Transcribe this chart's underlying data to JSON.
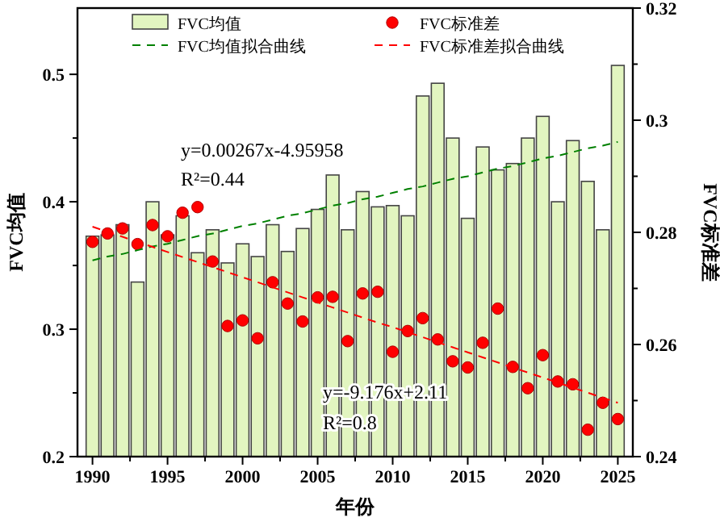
{
  "chart_data": {
    "type": "bar",
    "xlabel": "年份",
    "ylabel": "FVC均值",
    "y2label": "FVC标准差",
    "x": [
      1990,
      1991,
      1992,
      1993,
      1994,
      1995,
      1996,
      1997,
      1998,
      1999,
      2000,
      2001,
      2002,
      2003,
      2004,
      2005,
      2006,
      2007,
      2008,
      2009,
      2010,
      2011,
      2012,
      2013,
      2014,
      2015,
      2016,
      2017,
      2018,
      2019,
      2020,
      2021,
      2022,
      2023,
      2024,
      2025
    ],
    "xlim": [
      1989,
      2026
    ],
    "xticks": [
      1990,
      {
        "value": 1992.5,
        "label": null
      },
      1995,
      {
        "value": 1997.5,
        "label": null
      },
      2000,
      {
        "value": 2002.5,
        "label": null
      },
      2005,
      {
        "value": 2007.5,
        "label": null
      },
      2010,
      {
        "value": 2012.5,
        "label": null
      },
      2015,
      {
        "value": 2017.5,
        "label": null
      },
      2020,
      {
        "value": 2022.5,
        "label": null
      },
      2025
    ],
    "ylim": [
      0.2,
      0.552
    ],
    "yticks": [
      0.2,
      {
        "value": 0.25,
        "label": null
      },
      0.3,
      {
        "value": 0.35,
        "label": null
      },
      0.4,
      {
        "value": 0.45,
        "label": null
      },
      0.5
    ],
    "y2lim": [
      0.24,
      0.32
    ],
    "y2ticks": [
      0.24,
      {
        "value": 0.25,
        "label": null
      },
      0.26,
      {
        "value": 0.27,
        "label": null
      },
      0.28,
      {
        "value": 0.29,
        "label": null
      },
      0.3,
      {
        "value": 0.31,
        "label": null
      },
      0.32
    ],
    "legend": "top",
    "grid": false,
    "annotations": [
      "y=0.00267x-4.95958",
      "R²=0.44",
      "y=-9.176x+2.11",
      "R²=0.8"
    ],
    "series": [
      {
        "name": "FVC均值",
        "color": "#e2f5c0",
        "values": [
          0.373,
          0.374,
          0.382,
          0.337,
          0.4,
          0.374,
          0.389,
          0.36,
          0.378,
          0.352,
          0.367,
          0.357,
          0.382,
          0.361,
          0.379,
          0.394,
          0.421,
          0.378,
          0.408,
          0.396,
          0.397,
          0.389,
          0.483,
          0.493,
          0.45,
          0.387,
          0.443,
          0.425,
          0.43,
          0.45,
          0.467,
          0.4,
          0.448,
          0.416,
          0.378,
          0.507
        ]
      },
      {
        "name": "FVC标准差",
        "type": "scatter",
        "axis": "y2",
        "marker": "circle",
        "color": "#ff0000",
        "values": [
          0.2783,
          0.2798,
          0.2807,
          0.2779,
          0.2813,
          0.2793,
          0.2835,
          0.2845,
          0.2748,
          0.2633,
          0.2643,
          0.2611,
          0.2711,
          0.2673,
          0.2641,
          0.2684,
          0.2685,
          0.2606,
          0.2691,
          0.2694,
          0.2587,
          0.2624,
          0.2647,
          0.2609,
          0.257,
          0.2559,
          0.2603,
          0.2664,
          0.256,
          0.2522,
          0.2581,
          0.2534,
          0.2529,
          0.2448,
          0.2496,
          0.2467
        ]
      },
      {
        "name": "FVC均值拟合曲线",
        "type": "line",
        "line_style": "dashed",
        "color": "#008000",
        "values": [
          0.354,
          0.357,
          0.359,
          0.362,
          0.365,
          0.367,
          0.37,
          0.373,
          0.375,
          0.378,
          0.381,
          0.383,
          0.386,
          0.389,
          0.391,
          0.394,
          0.397,
          0.399,
          0.402,
          0.404,
          0.407,
          0.41,
          0.412,
          0.415,
          0.418,
          0.42,
          0.423,
          0.426,
          0.428,
          0.431,
          0.434,
          0.436,
          0.439,
          0.442,
          0.444,
          0.447
        ]
      },
      {
        "name": "FVC标准差拟合曲线",
        "type": "line",
        "axis": "y2",
        "line_style": "dashed",
        "color": "#ff0000",
        "values": [
          0.281,
          0.2801,
          0.2792,
          0.2783,
          0.2774,
          0.2765,
          0.2756,
          0.2747,
          0.2738,
          0.2729,
          0.272,
          0.2711,
          0.2702,
          0.2693,
          0.2684,
          0.2675,
          0.2666,
          0.2657,
          0.2648,
          0.2639,
          0.2631,
          0.2622,
          0.2613,
          0.2604,
          0.2595,
          0.2586,
          0.2577,
          0.2568,
          0.2559,
          0.255,
          0.2541,
          0.2532,
          0.2523,
          0.2514,
          0.2505,
          0.2496
        ]
      }
    ]
  }
}
